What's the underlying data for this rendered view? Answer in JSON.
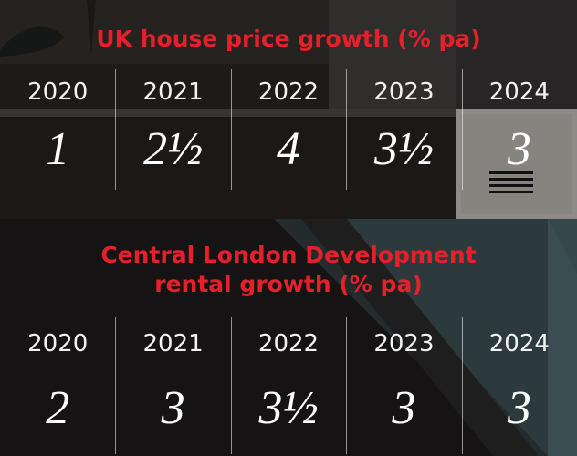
{
  "sections": [
    {
      "title": "UK house price growth (% pa)",
      "items": [
        {
          "year": "2020",
          "value": "1"
        },
        {
          "year": "2021",
          "value": "2½"
        },
        {
          "year": "2022",
          "value": "4"
        },
        {
          "year": "2023",
          "value": "3½"
        },
        {
          "year": "2024",
          "value": "3"
        }
      ]
    },
    {
      "title": "Central London Development rental growth (% pa)",
      "items": [
        {
          "year": "2020",
          "value": "2"
        },
        {
          "year": "2021",
          "value": "3"
        },
        {
          "year": "2022",
          "value": "3½"
        },
        {
          "year": "2023",
          "value": "3"
        },
        {
          "year": "2024",
          "value": "3"
        }
      ]
    }
  ],
  "colors": {
    "title": "#e4202a",
    "text": "#ffffff"
  }
}
